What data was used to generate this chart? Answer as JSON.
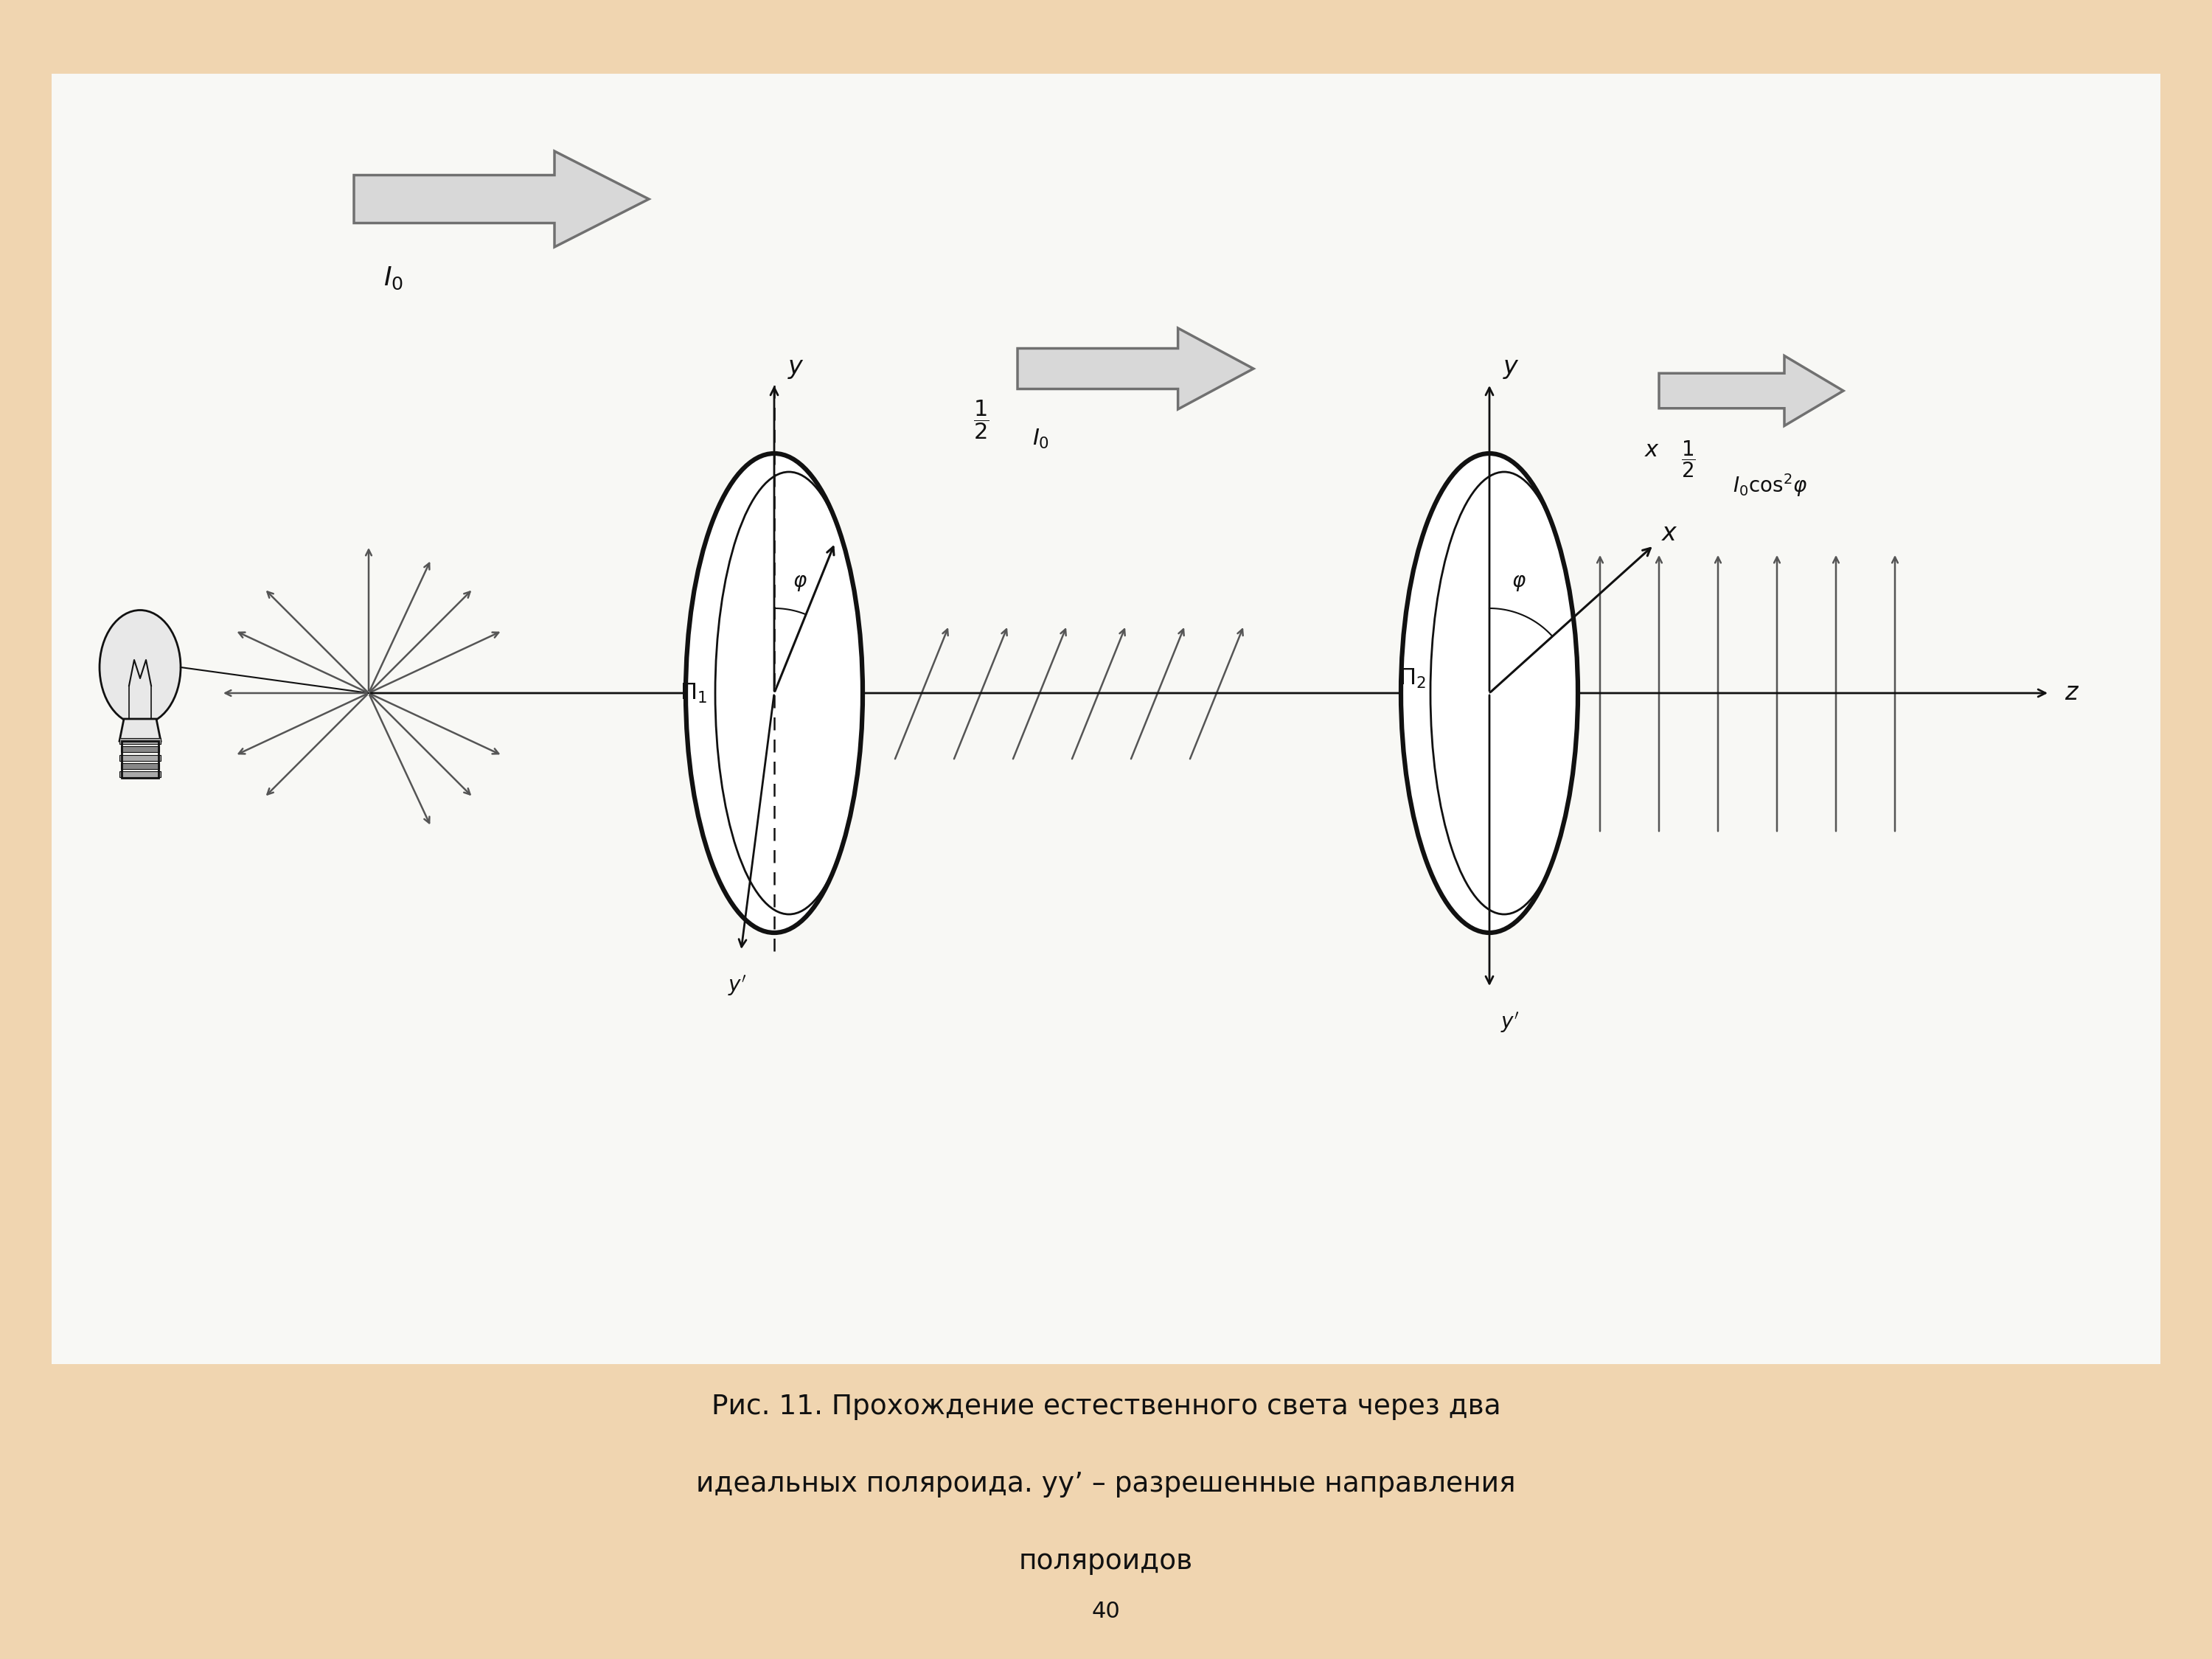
{
  "bg_outer": "#f0d5b0",
  "bg_inner": "#f8f8f5",
  "text_color": "#111111",
  "arrow_gray": "#999999",
  "arrow_dark": "#555555",
  "arrow_fill": "#d8d8d8",
  "arrow_edge": "#707070",
  "line_dark": "#111111",
  "caption_line1": "Рис. 11. Прохождение естественного света через два",
  "caption_line2": "идеальных поляроида. уу’ – разрешенные направления",
  "caption_line3": "поляроидов",
  "page_num": "40",
  "scatter_angles": [
    90,
    65,
    45,
    25,
    135,
    155,
    -45,
    -65,
    -25,
    -135,
    -155,
    180
  ],
  "fig_width": 30.0,
  "fig_height": 22.5
}
